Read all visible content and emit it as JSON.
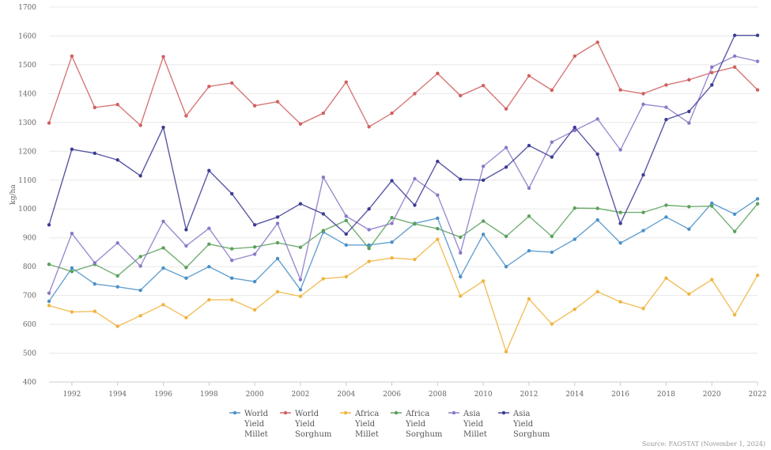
{
  "source_note": "Source: FAOSTAT (November 1, 2024)",
  "chart_data": {
    "type": "line",
    "title": "",
    "xlabel": "",
    "ylabel": "kg/ha",
    "ylim": [
      400,
      1700
    ],
    "yticks": [
      400,
      500,
      600,
      700,
      800,
      900,
      1000,
      1100,
      1200,
      1300,
      1400,
      1500,
      1600,
      1700
    ],
    "xlim": [
      1991,
      2022
    ],
    "xticks": [
      "1992",
      "1994",
      "1996",
      "1998",
      "2000",
      "2002",
      "2004",
      "2006",
      "2008",
      "2010",
      "2012",
      "2014",
      "2016",
      "2018",
      "2020",
      "2022"
    ],
    "grid": "horizontal",
    "legend_position": "bottom",
    "x": [
      1991,
      1992,
      1993,
      1994,
      1995,
      1996,
      1997,
      1998,
      1999,
      2000,
      2001,
      2002,
      2003,
      2004,
      2005,
      2006,
      2007,
      2008,
      2009,
      2010,
      2011,
      2012,
      2013,
      2014,
      2015,
      2016,
      2017,
      2018,
      2019,
      2020,
      2021,
      2022
    ],
    "series": [
      {
        "name": "World Yield Millet",
        "legend_lines": [
          "World",
          "Yield",
          "Millet"
        ],
        "color": "#4a90c8",
        "values": [
          680,
          795,
          740,
          730,
          718,
          795,
          760,
          800,
          760,
          748,
          828,
          720,
          920,
          875,
          875,
          885,
          950,
          968,
          765,
          912,
          800,
          855,
          850,
          895,
          962,
          882,
          925,
          972,
          930,
          1020,
          982,
          1035
        ]
      },
      {
        "name": "World Yield Sorghum",
        "legend_lines": [
          "World",
          "Yield",
          "Sorghum"
        ],
        "color": "#d05f5f",
        "values": [
          1298,
          1530,
          1352,
          1362,
          1290,
          1528,
          1323,
          1425,
          1437,
          1358,
          1372,
          1295,
          1332,
          1440,
          1285,
          1332,
          1400,
          1470,
          1393,
          1428,
          1347,
          1462,
          1412,
          1530,
          1578,
          1413,
          1400,
          1430,
          1448,
          1473,
          1492,
          1413
        ]
      },
      {
        "name": "Africa Yield Millet",
        "legend_lines": [
          "Africa",
          "Yield",
          "Millet"
        ],
        "color": "#f0b440",
        "values": [
          665,
          643,
          645,
          593,
          630,
          668,
          623,
          685,
          685,
          650,
          713,
          697,
          758,
          765,
          818,
          830,
          825,
          895,
          698,
          750,
          505,
          688,
          601,
          652,
          713,
          678,
          655,
          760,
          705,
          755,
          633,
          770
        ]
      },
      {
        "name": "Africa Yield Sorghum",
        "legend_lines": [
          "Africa",
          "Yield",
          "Sorghum"
        ],
        "color": "#5aa05a",
        "values": [
          808,
          783,
          808,
          768,
          835,
          865,
          797,
          878,
          862,
          868,
          883,
          867,
          925,
          960,
          863,
          970,
          948,
          932,
          902,
          958,
          905,
          975,
          905,
          1003,
          1002,
          988,
          988,
          1013,
          1008,
          1010,
          922,
          1018
        ]
      },
      {
        "name": "Asia Yield Millet",
        "legend_lines": [
          "Asia",
          "Yield",
          "Millet"
        ],
        "color": "#8a78c8",
        "values": [
          708,
          915,
          813,
          882,
          802,
          957,
          872,
          933,
          822,
          843,
          950,
          755,
          1110,
          975,
          928,
          950,
          1105,
          1048,
          848,
          1148,
          1213,
          1072,
          1232,
          1272,
          1312,
          1205,
          1363,
          1353,
          1298,
          1492,
          1530,
          1512
        ]
      },
      {
        "name": "Asia Yield Sorghum",
        "legend_lines": [
          "Asia",
          "Yield",
          "Sorghum"
        ],
        "color": "#3c3c96",
        "values": [
          945,
          1207,
          1193,
          1170,
          1115,
          1283,
          928,
          1133,
          1053,
          945,
          972,
          1018,
          983,
          913,
          1000,
          1098,
          1013,
          1165,
          1103,
          1100,
          1145,
          1220,
          1180,
          1283,
          1190,
          950,
          1118,
          1310,
          1338,
          1430,
          1602,
          1602
        ]
      }
    ]
  }
}
